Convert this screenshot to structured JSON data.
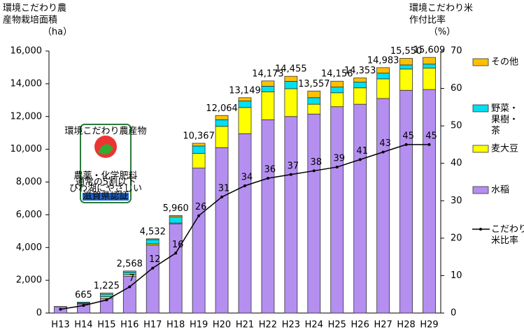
{
  "chart_data": {
    "type": "stacked-bar-line",
    "y_label": [
      "環境こだわり農",
      "産物栽培面積",
      "（ha）"
    ],
    "y2_label": [
      "環境こだわり米",
      "作付比率",
      "（%）"
    ],
    "categories": [
      "H13",
      "H14",
      "H15",
      "H16",
      "H17",
      "H18",
      "H19",
      "H20",
      "H21",
      "H22",
      "H23",
      "H24",
      "H25",
      "H26",
      "H27",
      "H28",
      "H29"
    ],
    "ylim": [
      0,
      16000
    ],
    "yticks": [
      0,
      {
        "value": 2000,
        "label": "2,000"
      },
      {
        "value": 4000,
        "label": "4,000"
      },
      {
        "value": 6000,
        "label": "6,000"
      },
      {
        "value": 8000,
        "label": "8,000"
      },
      {
        "value": 10000,
        "label": "10,000"
      },
      {
        "value": 12000,
        "label": "12,000"
      },
      {
        "value": 14000,
        "label": "14,000"
      },
      {
        "value": 16000,
        "label": "16,000"
      }
    ],
    "y2lim": [
      0,
      70
    ],
    "y2ticks": [
      0,
      10,
      20,
      30,
      40,
      50,
      60,
      70
    ],
    "series": [
      {
        "name": "水稲",
        "color": "#b48ff0",
        "values": [
          380,
          550,
          900,
          2250,
          4150,
          5450,
          8850,
          10100,
          10950,
          11800,
          12000,
          12150,
          12600,
          12750,
          13100,
          13600,
          13650
        ]
      },
      {
        "name": "麦大豆",
        "color": "#ffff00",
        "values": [
          0,
          30,
          100,
          100,
          80,
          50,
          900,
          1300,
          1600,
          1700,
          1700,
          600,
          850,
          1000,
          1200,
          1300,
          1300
        ]
      },
      {
        "name": "野菜・\n果樹・\n茶",
        "color": "#00e0f0",
        "values": [
          20,
          60,
          150,
          150,
          250,
          380,
          450,
          400,
          400,
          350,
          450,
          400,
          350,
          350,
          350,
          250,
          250
        ]
      },
      {
        "name": "その他",
        "color": "#ffc000",
        "values": [
          0,
          25,
          75,
          68,
          52,
          80,
          167,
          264,
          199,
          323,
          305,
          407,
          356,
          253,
          333,
          400,
          409
        ]
      },
      {
        "name": "こだわり\n米比率",
        "color": "#000000",
        "axis": "y2",
        "values": [
          1,
          2,
          3.5,
          7,
          12,
          16,
          26,
          31,
          34,
          36,
          37,
          38,
          39,
          41,
          43,
          45,
          45
        ],
        "value_labels": [
          null,
          null,
          null,
          "7",
          "12",
          "16",
          "26",
          "31",
          "34",
          "36",
          "37",
          "38",
          "39",
          "41",
          "43",
          "45",
          "45"
        ]
      }
    ],
    "totals": {
      "values": [
        null,
        665,
        1225,
        2568,
        4532,
        5960,
        10367,
        12064,
        13149,
        14173,
        14455,
        13557,
        14156,
        14353,
        14983,
        15550,
        15609
      ],
      "value_labels": [
        null,
        "665",
        "1,225",
        "2,568",
        "4,532",
        "5,960",
        "10,367",
        "12,064",
        "13,149",
        "14,173",
        "14,455",
        "13,557",
        "14,156",
        "14,353",
        "14,983",
        "15,550",
        "15,609"
      ]
    },
    "badge": [
      "環境こだわり農産物",
      "農薬・化学肥料",
      "通常の5割以下",
      "びわ湖にやさしい",
      "滋賀県認証"
    ]
  }
}
